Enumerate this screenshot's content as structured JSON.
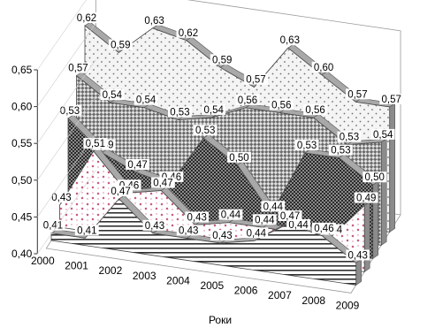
{
  "chart_data": {
    "type": "area",
    "variant": "3d-depth",
    "title": "",
    "xlabel": "Роки",
    "ylabel": "",
    "categories": [
      "2000",
      "2001",
      "2002",
      "2003",
      "2004",
      "2005",
      "2006",
      "2007",
      "2008",
      "2009"
    ],
    "ylim": [
      0.4,
      0.65
    ],
    "yticks": [
      "0,40",
      "0,45",
      "0,50",
      "0,55",
      "0,60",
      "0,65"
    ],
    "legend": "none",
    "grid": false,
    "series": [
      {
        "values": [
          0.62,
          0.59,
          0.63,
          0.62,
          0.59,
          0.57,
          0.63,
          0.6,
          0.57,
          0.57
        ],
        "labels": [
          "0,62",
          "0,59",
          "0,63",
          "0,62",
          "0,59",
          "0,57",
          "0,63",
          "0,60",
          "0,57",
          "0,57"
        ],
        "fill": "dots",
        "color": "#f4f4f4"
      },
      {
        "values": [
          0.57,
          0.54,
          0.54,
          0.53,
          0.54,
          0.56,
          0.56,
          0.56,
          0.53,
          0.54
        ],
        "labels": [
          "0,57",
          "0,54",
          "0,54",
          "0,53",
          "0,54",
          "0,56",
          "0,56",
          "0,56",
          "0,53",
          "0,54"
        ],
        "fill": "diagonal-check",
        "color": "#c8c8c8"
      },
      {
        "values": [
          0.53,
          0.49,
          0.47,
          0.46,
          0.53,
          0.5,
          0.44,
          0.53,
          0.53,
          0.5
        ],
        "labels": [
          "0,53",
          "0,49",
          "0,47",
          "0,46",
          "0,53",
          "0,50",
          "0,44",
          "0,53",
          "0,53",
          "0,50"
        ],
        "fill": "dark-check",
        "color": "#5a5a5a"
      },
      {
        "values": [
          0.43,
          0.51,
          0.46,
          0.47,
          0.43,
          0.44,
          0.44,
          0.44,
          0.44,
          0.49
        ],
        "labels": [
          "0,43",
          "0,51",
          "0,46",
          "0,47",
          "0,43",
          "0,44",
          "0,44",
          "0,44",
          "0,44",
          "0,49"
        ],
        "fill": "pink-cross",
        "color": "#c4507a"
      },
      {
        "values": [
          0.41,
          0.41,
          0.47,
          0.43,
          0.43,
          0.43,
          0.44,
          0.47,
          0.46,
          0.43
        ],
        "labels": [
          "0,41",
          "0,41",
          "0,47",
          "0,43",
          "0,43",
          "0,43",
          "0,44",
          "0,47",
          "0,46",
          "0,43"
        ],
        "fill": "horizontal-stripes",
        "color": "#444444"
      }
    ]
  }
}
